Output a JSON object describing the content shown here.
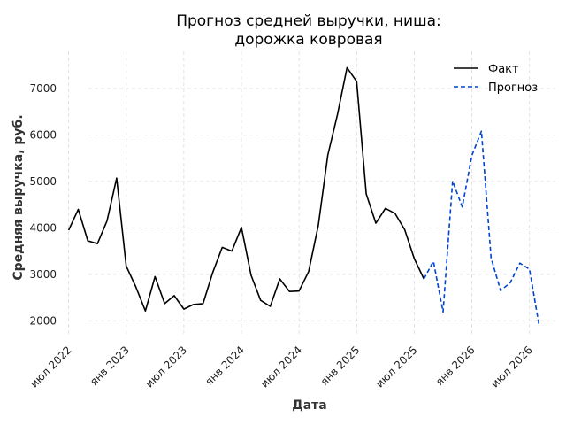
{
  "chart_data": {
    "type": "line",
    "title_line1": "Прогноз средней выручки, ниша:",
    "title_line2": "дорожка ковровая",
    "xlabel": "Дата",
    "ylabel": "Средняя выручка, руб.",
    "ylim": [
      1700,
      7800
    ],
    "y_ticks": [
      2000,
      3000,
      4000,
      5000,
      6000,
      7000
    ],
    "x_ticks": [
      {
        "date": "2022-07",
        "label": "июл 2022"
      },
      {
        "date": "2023-01",
        "label": "янв 2023"
      },
      {
        "date": "2023-07",
        "label": "июл 2023"
      },
      {
        "date": "2024-01",
        "label": "янв 2024"
      },
      {
        "date": "2024-07",
        "label": "июл 2024"
      },
      {
        "date": "2025-01",
        "label": "янв 2025"
      },
      {
        "date": "2025-07",
        "label": "июл 2025"
      },
      {
        "date": "2026-01",
        "label": "янв 2026"
      },
      {
        "date": "2026-07",
        "label": "июл 2026"
      }
    ],
    "grid": true,
    "legend_position": "top-right",
    "series": [
      {
        "name": "Факт",
        "color": "#000000",
        "style": "solid",
        "x": [
          "2022-07",
          "2022-08",
          "2022-09",
          "2022-10",
          "2022-11",
          "2022-12",
          "2023-01",
          "2023-02",
          "2023-03",
          "2023-04",
          "2023-05",
          "2023-06",
          "2023-07",
          "2023-08",
          "2023-09",
          "2023-10",
          "2023-11",
          "2023-12",
          "2024-01",
          "2024-02",
          "2024-03",
          "2024-04",
          "2024-05",
          "2024-06",
          "2024-07",
          "2024-08",
          "2024-09",
          "2024-10",
          "2024-11",
          "2024-12",
          "2025-01",
          "2025-02",
          "2025-03",
          "2025-04",
          "2025-05",
          "2025-06",
          "2025-07",
          "2025-08"
        ],
        "values": [
          3950,
          4400,
          3720,
          3660,
          4150,
          5070,
          3180,
          2730,
          2210,
          2950,
          2370,
          2540,
          2250,
          2350,
          2370,
          3030,
          3580,
          3500,
          4010,
          2980,
          2440,
          2310,
          2900,
          2630,
          2640,
          3060,
          4050,
          5570,
          6440,
          7450,
          7150,
          4730,
          4100,
          4420,
          4310,
          3960,
          3340,
          2900
        ]
      },
      {
        "name": "Прогноз",
        "color": "#0043ce",
        "style": "dashed",
        "x": [
          "2025-08",
          "2025-09",
          "2025-10",
          "2025-11",
          "2025-12",
          "2026-01",
          "2026-02",
          "2026-03",
          "2026-04",
          "2026-05",
          "2026-06",
          "2026-07",
          "2026-08"
        ],
        "values": [
          2900,
          3280,
          2190,
          5010,
          4450,
          5560,
          6080,
          3350,
          2650,
          2820,
          3240,
          3110,
          1910
        ]
      }
    ]
  }
}
